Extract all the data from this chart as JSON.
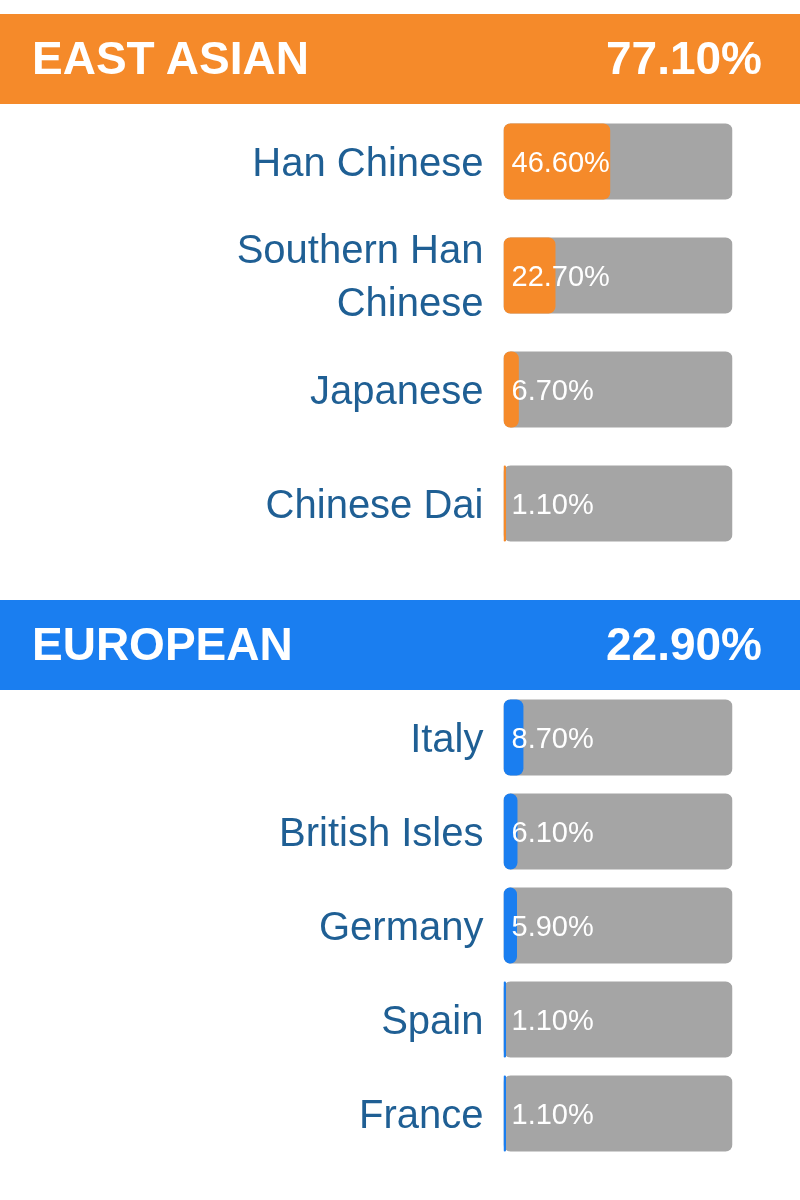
{
  "chart_data": [
    {
      "type": "bar",
      "orientation": "horizontal",
      "title": "EAST ASIAN",
      "annotations": [
        "77.10%"
      ],
      "categories": [
        "Han Chinese",
        "Southern Han Chinese",
        "Japanese",
        "Chinese Dai"
      ],
      "values": [
        46.6,
        22.7,
        6.7,
        1.1
      ],
      "value_labels": [
        "46.60%",
        "22.70%",
        "6.70%",
        "1.10%"
      ],
      "color": "#f58a2a",
      "xlim": [
        0,
        100
      ],
      "bands": [
        {
          "axis": "x",
          "from": 0,
          "to": 100,
          "color": "#a5a5a5"
        }
      ],
      "tick_labels": "y"
    },
    {
      "type": "bar",
      "orientation": "horizontal",
      "title": "EUROPEAN",
      "annotations": [
        "22.90%"
      ],
      "categories": [
        "Italy",
        "British Isles",
        "Germany",
        "Spain",
        "France"
      ],
      "values": [
        8.7,
        6.1,
        5.9,
        1.1,
        1.1
      ],
      "value_labels": [
        "8.70%",
        "6.10%",
        "5.90%",
        "1.10%",
        "1.10%"
      ],
      "color": "#1a7ef0",
      "xlim": [
        0,
        100
      ],
      "bands": [
        {
          "axis": "x",
          "from": 0,
          "to": 100,
          "color": "#a5a5a5"
        }
      ],
      "tick_labels": "y"
    }
  ]
}
